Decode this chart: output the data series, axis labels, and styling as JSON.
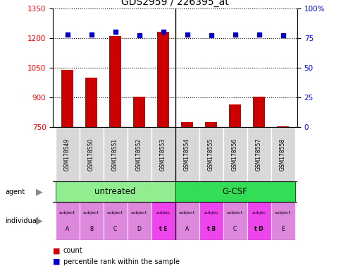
{
  "title": "GDS2959 / 226395_at",
  "samples": [
    "GSM178549",
    "GSM178550",
    "GSM178551",
    "GSM178552",
    "GSM178553",
    "GSM178554",
    "GSM178555",
    "GSM178556",
    "GSM178557",
    "GSM178558"
  ],
  "count_values": [
    1040,
    1000,
    1210,
    905,
    1230,
    775,
    775,
    865,
    905,
    755
  ],
  "percentile_values": [
    78,
    78,
    80,
    77,
    80,
    78,
    77,
    78,
    78,
    77
  ],
  "ylim_left": [
    750,
    1350
  ],
  "ylim_right": [
    0,
    100
  ],
  "yticks_left": [
    750,
    900,
    1050,
    1200,
    1350
  ],
  "yticks_right": [
    0,
    25,
    50,
    75,
    100
  ],
  "individual_labels": [
    [
      "subject",
      "A"
    ],
    [
      "subject",
      "B"
    ],
    [
      "subject",
      "C"
    ],
    [
      "subject",
      "D"
    ],
    [
      "subjec",
      "t E"
    ],
    [
      "subject",
      "A"
    ],
    [
      "subjec",
      "t B"
    ],
    [
      "subject",
      "C"
    ],
    [
      "subjec",
      "t D"
    ],
    [
      "subject",
      "E"
    ]
  ],
  "individual_highlight": [
    4,
    6,
    8
  ],
  "bar_color": "#cc0000",
  "dot_color": "#0000cc",
  "legend_count_color": "#cc0000",
  "legend_dot_color": "#0000cc",
  "agent_light_green": "#90ee90",
  "agent_bright_green": "#33dd55",
  "indiv_normal_color": "#dd88dd",
  "indiv_highlight_color": "#ee44ee"
}
